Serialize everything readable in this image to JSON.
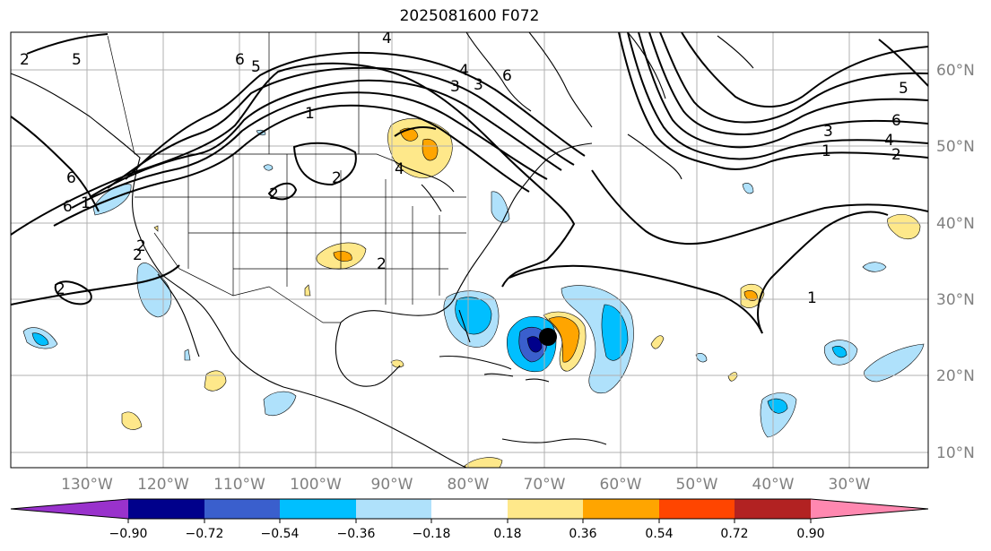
{
  "title": "2025081600 F072",
  "lon_labels": [
    "130°W",
    "120°W",
    "110°W",
    "100°W",
    "90°W",
    "80°W",
    "70°W",
    "60°W",
    "50°W",
    "40°W",
    "30°W"
  ],
  "lat_labels": [
    "60°N",
    "50°N",
    "40°N",
    "30°N",
    "20°N",
    "10°N"
  ],
  "colorbar": {
    "ticks": [
      "−0.90",
      "−0.72",
      "−0.54",
      "−0.36",
      "−0.18",
      "0.18",
      "0.36",
      "0.54",
      "0.72",
      "0.90"
    ],
    "colors": [
      "#9932cc",
      "#00008b",
      "#3a5fcd",
      "#00bfff",
      "#afe1fb",
      "#ffffff",
      "#fee88a",
      "#ffa500",
      "#ff4500",
      "#b22222",
      "#ff88b0"
    ]
  },
  "contour_labels": [
    "5",
    "6",
    "5",
    "6",
    "4",
    "4",
    "6",
    "3",
    "1",
    "2",
    "2",
    "6",
    "2",
    "2",
    "2",
    "1",
    "3",
    "4",
    "5",
    "6",
    "3",
    "4",
    "1",
    "2",
    "1",
    "2",
    "2"
  ],
  "marker": "storm-center"
}
